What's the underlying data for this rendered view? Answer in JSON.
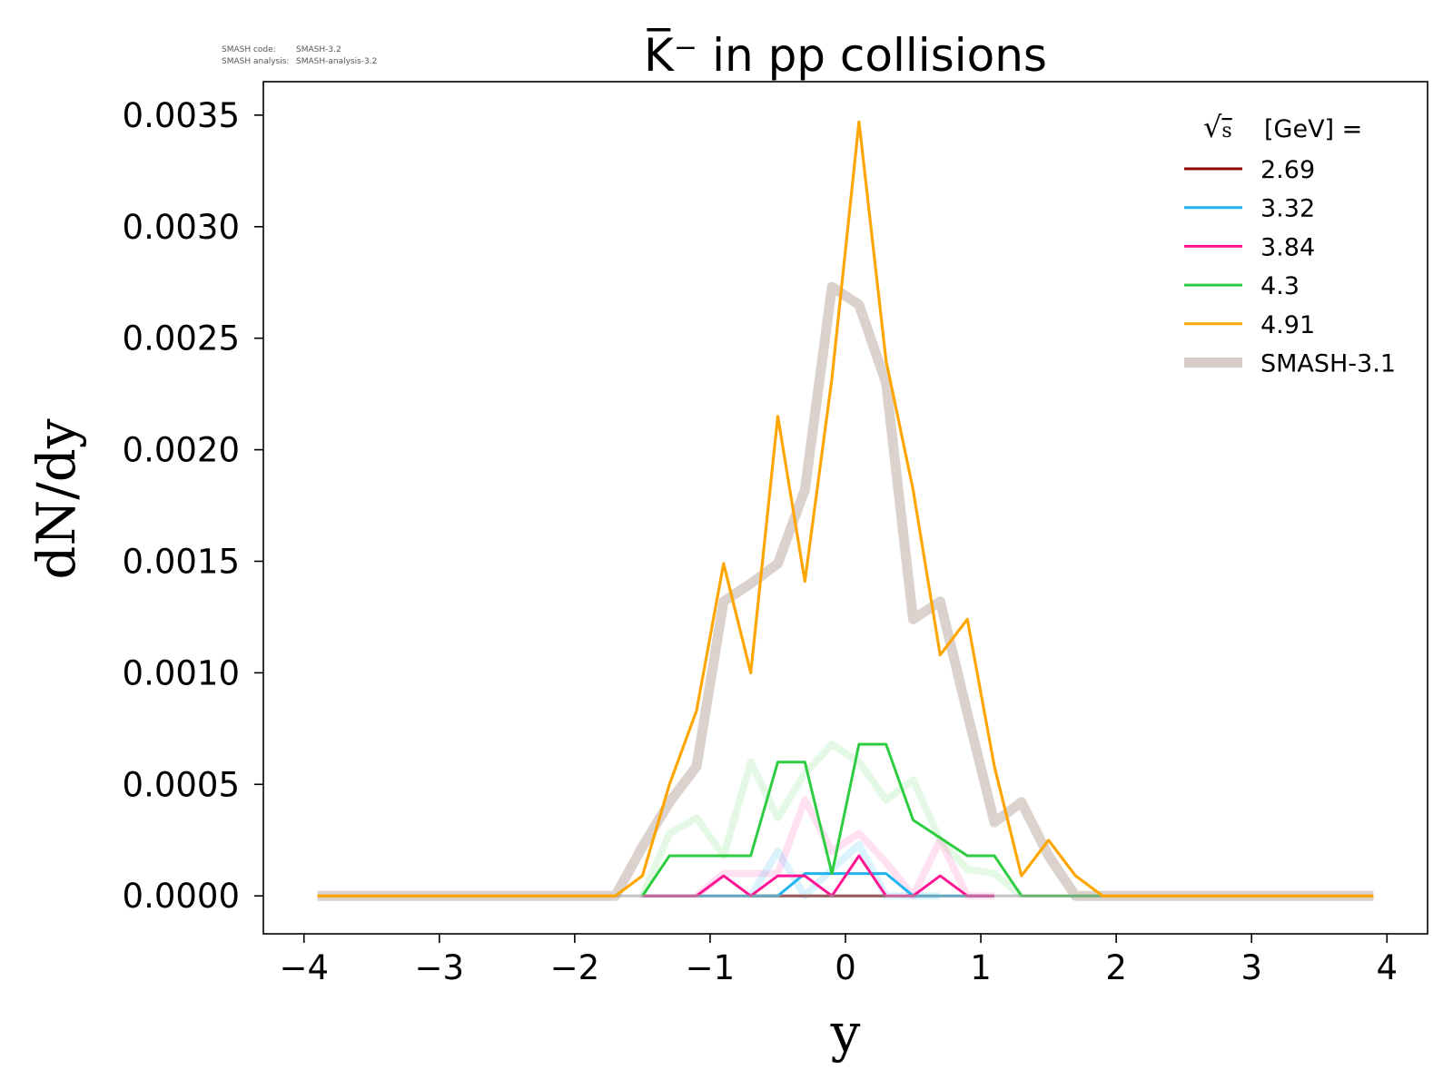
{
  "meta": {
    "line1_label": "SMASH code:",
    "line1_value": "SMASH-3.2",
    "line2_label": "SMASH analysis:",
    "line2_value": "SMASH-analysis-3.2"
  },
  "chart_data": {
    "type": "line",
    "title": "K̅⁻ in pp collisions",
    "xlabel": "y",
    "ylabel": "dN/dy",
    "xlim": [
      -4.3,
      4.3
    ],
    "ylim": [
      -0.00017,
      0.00365
    ],
    "x_ticks": [
      -4,
      -3,
      -2,
      -1,
      0,
      1,
      2,
      3,
      4
    ],
    "x_tick_labels": [
      "−4",
      "−3",
      "−2",
      "−1",
      "0",
      "1",
      "2",
      "3",
      "4"
    ],
    "y_ticks": [
      0.0,
      0.0005,
      0.001,
      0.0015,
      0.002,
      0.0025,
      0.003,
      0.0035
    ],
    "y_tick_labels": [
      "0.0000",
      "0.0005",
      "0.0010",
      "0.0015",
      "0.0020",
      "0.0025",
      "0.0030",
      "0.0035"
    ],
    "grid": false,
    "legend": {
      "placement": "top-right",
      "title_prefix": "√s",
      "title_suffix": "[GeV] ="
    },
    "series": [
      {
        "name": "SMASH-3.1",
        "role": "reference",
        "color": "#d7ccc8",
        "opacity": 0.9,
        "points": [
          [
            -3.9,
            0
          ],
          [
            -1.9,
            0
          ],
          [
            -1.7,
            0
          ],
          [
            -1.5,
            0.00022
          ],
          [
            -1.3,
            0.00042
          ],
          [
            -1.1,
            0.00058
          ],
          [
            -0.9,
            0.00132
          ],
          [
            -0.7,
            0.0014
          ],
          [
            -0.5,
            0.00149
          ],
          [
            -0.3,
            0.00182
          ],
          [
            -0.1,
            0.00273
          ],
          [
            0.1,
            0.00265
          ],
          [
            0.3,
            0.0023
          ],
          [
            0.5,
            0.00124
          ],
          [
            0.7,
            0.00132
          ],
          [
            0.9,
            0.00082
          ],
          [
            1.1,
            0.00033
          ],
          [
            1.3,
            0.00042
          ],
          [
            1.5,
            0.00018
          ],
          [
            1.7,
            0
          ],
          [
            1.9,
            0
          ],
          [
            3.9,
            0
          ]
        ]
      },
      {
        "name": "4.3 (SMASH-3.1)",
        "role": "faint",
        "color": "#2ecc40",
        "opacity": 0.13,
        "points": [
          [
            -1.5,
            0
          ],
          [
            -1.3,
            0.00028
          ],
          [
            -1.1,
            0.00035
          ],
          [
            -0.9,
            0.00018
          ],
          [
            -0.7,
            0.0006
          ],
          [
            -0.5,
            0.00035
          ],
          [
            -0.3,
            0.00055
          ],
          [
            -0.1,
            0.00068
          ],
          [
            0.1,
            0.0006
          ],
          [
            0.3,
            0.00043
          ],
          [
            0.5,
            0.00052
          ],
          [
            0.7,
            0.00025
          ],
          [
            0.9,
            0.00012
          ],
          [
            1.1,
            0.0001
          ],
          [
            1.3,
            0
          ]
        ]
      },
      {
        "name": "3.84 (SMASH-3.1)",
        "role": "faint",
        "color": "#ff1493",
        "opacity": 0.13,
        "points": [
          [
            -1.1,
            0
          ],
          [
            -0.9,
            0.0001
          ],
          [
            -0.7,
            0.0001
          ],
          [
            -0.5,
            0.0001
          ],
          [
            -0.3,
            0.00043
          ],
          [
            -0.1,
            0.0002
          ],
          [
            0.1,
            0.00028
          ],
          [
            0.3,
            0.00015
          ],
          [
            0.5,
            0
          ],
          [
            0.7,
            0.00025
          ],
          [
            0.9,
            0
          ],
          [
            1.1,
            0
          ]
        ]
      },
      {
        "name": "3.32 (SMASH-3.1)",
        "role": "faint",
        "color": "#1eb4f0",
        "opacity": 0.16,
        "points": [
          [
            -0.7,
            0
          ],
          [
            -0.5,
            0.0002
          ],
          [
            -0.3,
            0
          ],
          [
            -0.1,
            0.00012
          ],
          [
            0.1,
            0.00023
          ],
          [
            0.3,
            0
          ],
          [
            0.7,
            0
          ]
        ]
      },
      {
        "name": "2.69",
        "color": "#8b0000",
        "points": [
          [
            -0.7,
            0
          ],
          [
            0.3,
            0
          ]
        ]
      },
      {
        "name": "3.32",
        "color": "#1eb4f0",
        "points": [
          [
            -1.5,
            0
          ],
          [
            -0.5,
            0
          ],
          [
            -0.3,
            0.0001
          ],
          [
            0.1,
            0.0001
          ],
          [
            0.3,
            0.0001
          ],
          [
            0.5,
            0
          ],
          [
            1.1,
            0
          ]
        ]
      },
      {
        "name": "3.84",
        "color": "#ff1493",
        "points": [
          [
            -1.5,
            0
          ],
          [
            -1.1,
            0
          ],
          [
            -0.9,
            9e-05
          ],
          [
            -0.7,
            0
          ],
          [
            -0.5,
            9e-05
          ],
          [
            -0.3,
            9e-05
          ],
          [
            -0.1,
            0
          ],
          [
            0.1,
            0.00018
          ],
          [
            0.3,
            0
          ],
          [
            0.5,
            0
          ],
          [
            0.7,
            9e-05
          ],
          [
            0.9,
            0
          ],
          [
            1.1,
            0
          ]
        ]
      },
      {
        "name": "4.3",
        "color": "#2ecc40",
        "points": [
          [
            -1.5,
            0
          ],
          [
            -1.3,
            0.00018
          ],
          [
            -1.1,
            0.00018
          ],
          [
            -0.9,
            0.00018
          ],
          [
            -0.7,
            0.00018
          ],
          [
            -0.5,
            0.0006
          ],
          [
            -0.3,
            0.0006
          ],
          [
            -0.1,
            0.0001
          ],
          [
            0.1,
            0.00068
          ],
          [
            0.3,
            0.00068
          ],
          [
            0.5,
            0.00034
          ],
          [
            0.7,
            0.00026
          ],
          [
            0.9,
            0.00018
          ],
          [
            1.1,
            0.00018
          ],
          [
            1.3,
            0
          ],
          [
            1.9,
            0
          ]
        ]
      },
      {
        "name": "4.91",
        "color": "#ffa500",
        "points": [
          [
            -3.9,
            0
          ],
          [
            -1.7,
            0
          ],
          [
            -1.5,
            9e-05
          ],
          [
            -1.3,
            0.0005
          ],
          [
            -1.1,
            0.00083
          ],
          [
            -0.9,
            0.00149
          ],
          [
            -0.7,
            0.001
          ],
          [
            -0.5,
            0.00215
          ],
          [
            -0.3,
            0.00141
          ],
          [
            -0.1,
            0.00232
          ],
          [
            0.1,
            0.00347
          ],
          [
            0.3,
            0.0024
          ],
          [
            0.5,
            0.00182
          ],
          [
            0.7,
            0.00108
          ],
          [
            0.9,
            0.00124
          ],
          [
            1.1,
            0.00058
          ],
          [
            1.3,
            9e-05
          ],
          [
            1.5,
            0.00025
          ],
          [
            1.7,
            9e-05
          ],
          [
            1.9,
            0
          ],
          [
            3.9,
            0
          ]
        ]
      }
    ],
    "legend_entries": [
      {
        "label": "2.69",
        "color": "#8b0000",
        "style": "thin"
      },
      {
        "label": "3.32",
        "color": "#1eb4f0",
        "style": "thin"
      },
      {
        "label": "3.84",
        "color": "#ff1493",
        "style": "thin"
      },
      {
        "label": "4.3",
        "color": "#2ecc40",
        "style": "thin"
      },
      {
        "label": "4.91",
        "color": "#ffa500",
        "style": "thin"
      },
      {
        "label": "SMASH-3.1",
        "color": "#d7ccc8",
        "style": "thick"
      }
    ]
  }
}
